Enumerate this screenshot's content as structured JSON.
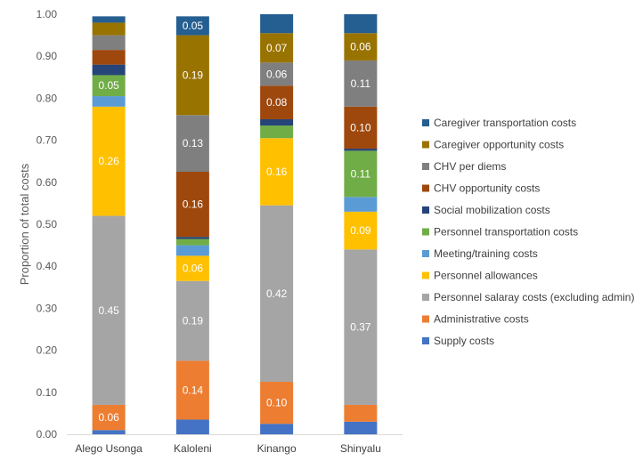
{
  "chart_data": {
    "type": "bar",
    "stacked": true,
    "title": "",
    "xlabel": "",
    "ylabel": "Proportion of total costs",
    "ylim": [
      0,
      1
    ],
    "y_ticks": [
      "0.00",
      "0.10",
      "0.20",
      "0.30",
      "0.40",
      "0.50",
      "0.60",
      "0.70",
      "0.80",
      "0.90",
      "1.00"
    ],
    "grid": false,
    "legend_position": "right",
    "categories": [
      "Alego Usonga",
      "Kaloleni",
      "Kinango",
      "Shinyalu"
    ],
    "series": [
      {
        "name": "Supply costs",
        "color": "#4472c4",
        "values": [
          0.01,
          0.035,
          0.025,
          0.03
        ],
        "labels": [
          "",
          "",
          "",
          ""
        ]
      },
      {
        "name": "Administrative costs",
        "color": "#ed7d31",
        "values": [
          0.06,
          0.14,
          0.1,
          0.04
        ],
        "labels": [
          "0.06",
          "0.14",
          "0.10",
          ""
        ]
      },
      {
        "name": "Personnel salaray costs (excluding admin)",
        "color": "#a5a5a5",
        "values": [
          0.45,
          0.19,
          0.42,
          0.37
        ],
        "labels": [
          "0.45",
          "0.19",
          "0.42",
          "0.37"
        ]
      },
      {
        "name": "Personnel allowances",
        "color": "#ffc000",
        "values": [
          0.26,
          0.06,
          0.16,
          0.09
        ],
        "labels": [
          "0.26",
          "0.06",
          "0.16",
          "0.09"
        ]
      },
      {
        "name": "Meeting/training costs",
        "color": "#5b9bd5",
        "values": [
          0.025,
          0.025,
          0.0,
          0.035
        ],
        "labels": [
          "",
          "",
          "",
          ""
        ]
      },
      {
        "name": "Personnel transportation costs",
        "color": "#70ad47",
        "values": [
          0.05,
          0.015,
          0.03,
          0.11
        ],
        "labels": [
          "0.05",
          "",
          "",
          "0.11"
        ]
      },
      {
        "name": "Social mobilization costs",
        "color": "#264478",
        "values": [
          0.025,
          0.005,
          0.015,
          0.005
        ],
        "labels": [
          "",
          "",
          "",
          ""
        ]
      },
      {
        "name": "CHV opportunity costs",
        "color": "#9e480e",
        "values": [
          0.035,
          0.155,
          0.08,
          0.1
        ],
        "labels": [
          "",
          "0.16",
          "0.08",
          "0.10"
        ]
      },
      {
        "name": "CHV per diems",
        "color": "#7f7f7f",
        "values": [
          0.035,
          0.135,
          0.055,
          0.11
        ],
        "labels": [
          "",
          "0.13",
          "0.06",
          "0.11"
        ]
      },
      {
        "name": "Caregiver opportunity costs",
        "color": "#997300",
        "values": [
          0.03,
          0.19,
          0.07,
          0.065
        ],
        "labels": [
          "",
          "0.19",
          "0.07",
          "0.06"
        ]
      },
      {
        "name": "Caregiver transportation costs",
        "color": "#255e91",
        "values": [
          0.015,
          0.045,
          0.045,
          0.045
        ],
        "labels": [
          "",
          "0.05",
          "",
          ""
        ]
      }
    ]
  }
}
